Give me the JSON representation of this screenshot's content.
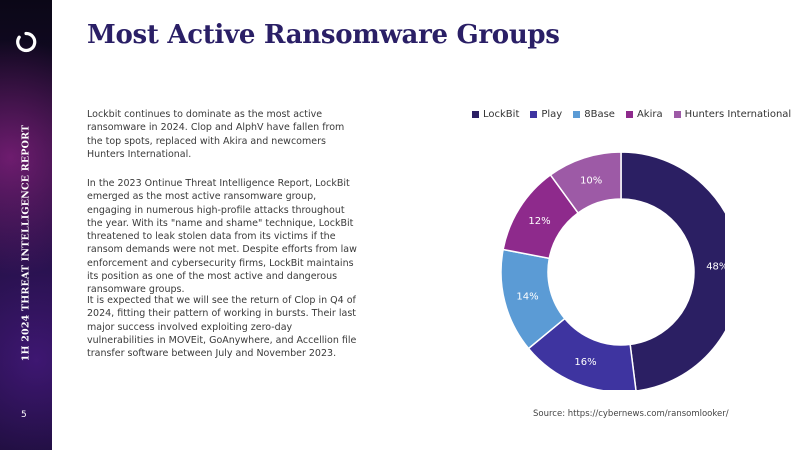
{
  "sidebar": {
    "vertical_text": "1H 2024   THREAT INTELLIGENCE REPORT",
    "page_number": "5"
  },
  "title": "Most Active Ransomware Groups",
  "paragraphs": [
    "Lockbit continues to dominate as the most active ransomware in 2024. Clop and AlphV have fallen from the top spots, replaced with Akira and newcomers Hunters International.",
    "In the 2023 Ontinue Threat Intelligence Report, LockBit emerged as the most active ransomware group, engaging in numerous high-profile attacks throughout the year. With its \"name and shame\" technique, LockBit threatened to leak stolen data from its victims if the ransom demands were not met. Despite efforts from law enforcement and cybersecurity firms, LockBit maintains its position as one of the most active and dangerous ransomware groups.",
    "It is expected that we will see the return of Clop in Q4 of 2024, fitting their pattern of working in bursts. Their last major success involved exploiting zero-day vulnerabilities in MOVEit, GoAnywhere, and Accellion file transfer software between July and November 2023."
  ],
  "source": "Source: https://cybernews.com/ransomlooker/",
  "colors": {
    "title": "#2a1f66",
    "brand_ring": "#ffffff"
  },
  "chart_data": {
    "type": "pie",
    "subtype": "donut",
    "legend_position": "top",
    "categories": [
      "LockBit",
      "Play",
      "8Base",
      "Akira",
      "Hunters International"
    ],
    "values": [
      48,
      16,
      14,
      12,
      10
    ],
    "value_labels": [
      "48%",
      "16%",
      "14%",
      "12%",
      "10%"
    ],
    "colors": [
      "#2b1f63",
      "#3e34a0",
      "#5b9bd5",
      "#8e2a8c",
      "#9d5aa6"
    ]
  }
}
